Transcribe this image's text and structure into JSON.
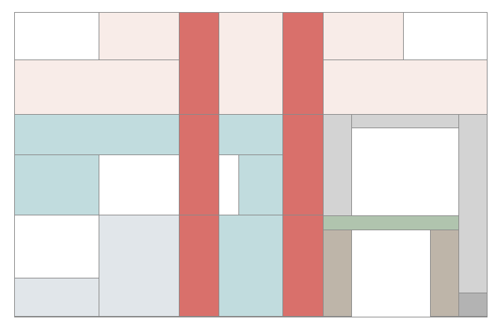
{
  "palette": {
    "pink": "#f8ece8",
    "red": "#d9706b",
    "teal": "#c1dcde",
    "slate": "#e1e6ea",
    "gray": "#d3d3d3",
    "dark_gray": "#b3b3b3",
    "green": "#b0c4ae",
    "taupe": "#beb5a9",
    "white": "#ffffff",
    "stroke": "#8a8a8a"
  }
}
